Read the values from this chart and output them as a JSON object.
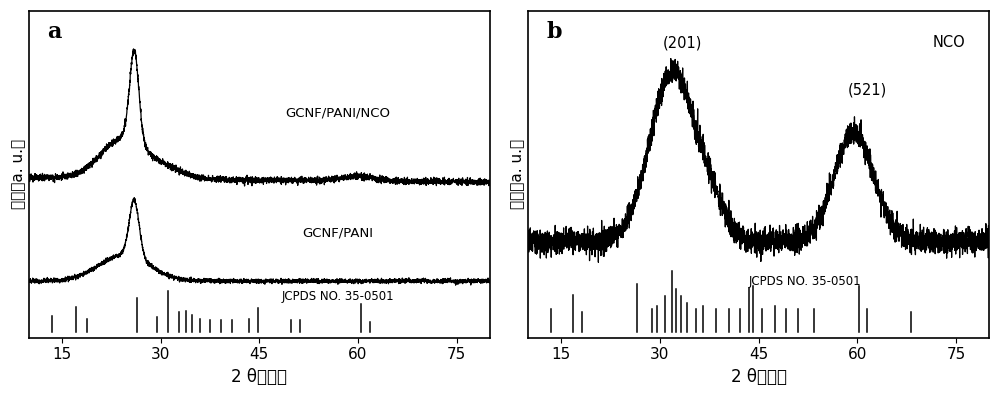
{
  "xlim": [
    10,
    80
  ],
  "xticks": [
    15,
    30,
    45,
    60,
    75
  ],
  "xlabel_prefix": "2 θ （",
  "xlabel_suffix": "度）",
  "ylabel_chars": "强度（a. u.）",
  "panel_a_label": "a",
  "panel_b_label": "b",
  "label_gcnf_pani_nco": "GCNF/PANI/NCO",
  "label_gcnf_pani": "GCNF/PANI",
  "label_jcpds": "JCPDS NO. 35-0501",
  "label_nco": "NCO",
  "peak_201": "(201)",
  "peak_521": "(521)",
  "jcpds_peaks_a": [
    13.5,
    17.2,
    18.8,
    26.5,
    29.4,
    31.2,
    32.8,
    33.8,
    34.8,
    36.0,
    37.5,
    39.2,
    40.8,
    43.5,
    44.8,
    49.8,
    51.2,
    60.4,
    61.8
  ],
  "jcpds_heights_a": [
    0.38,
    0.6,
    0.32,
    0.82,
    0.36,
    1.0,
    0.48,
    0.52,
    0.42,
    0.32,
    0.28,
    0.28,
    0.28,
    0.32,
    0.58,
    0.28,
    0.28,
    0.68,
    0.25
  ],
  "jcpds_peaks_b": [
    13.5,
    16.8,
    18.2,
    26.5,
    28.8,
    29.5,
    30.8,
    31.8,
    32.5,
    33.2,
    34.2,
    35.5,
    36.5,
    38.5,
    40.5,
    42.2,
    43.5,
    44.2,
    45.5,
    47.5,
    49.2,
    51.0,
    53.5,
    60.2,
    61.5,
    68.2
  ],
  "jcpds_heights_b": [
    0.38,
    0.6,
    0.32,
    0.78,
    0.38,
    0.42,
    0.58,
    1.0,
    0.7,
    0.58,
    0.48,
    0.38,
    0.42,
    0.38,
    0.38,
    0.38,
    0.72,
    0.75,
    0.38,
    0.42,
    0.38,
    0.38,
    0.38,
    0.75,
    0.38,
    0.32
  ],
  "background_color": "#ffffff",
  "line_color": "#000000"
}
